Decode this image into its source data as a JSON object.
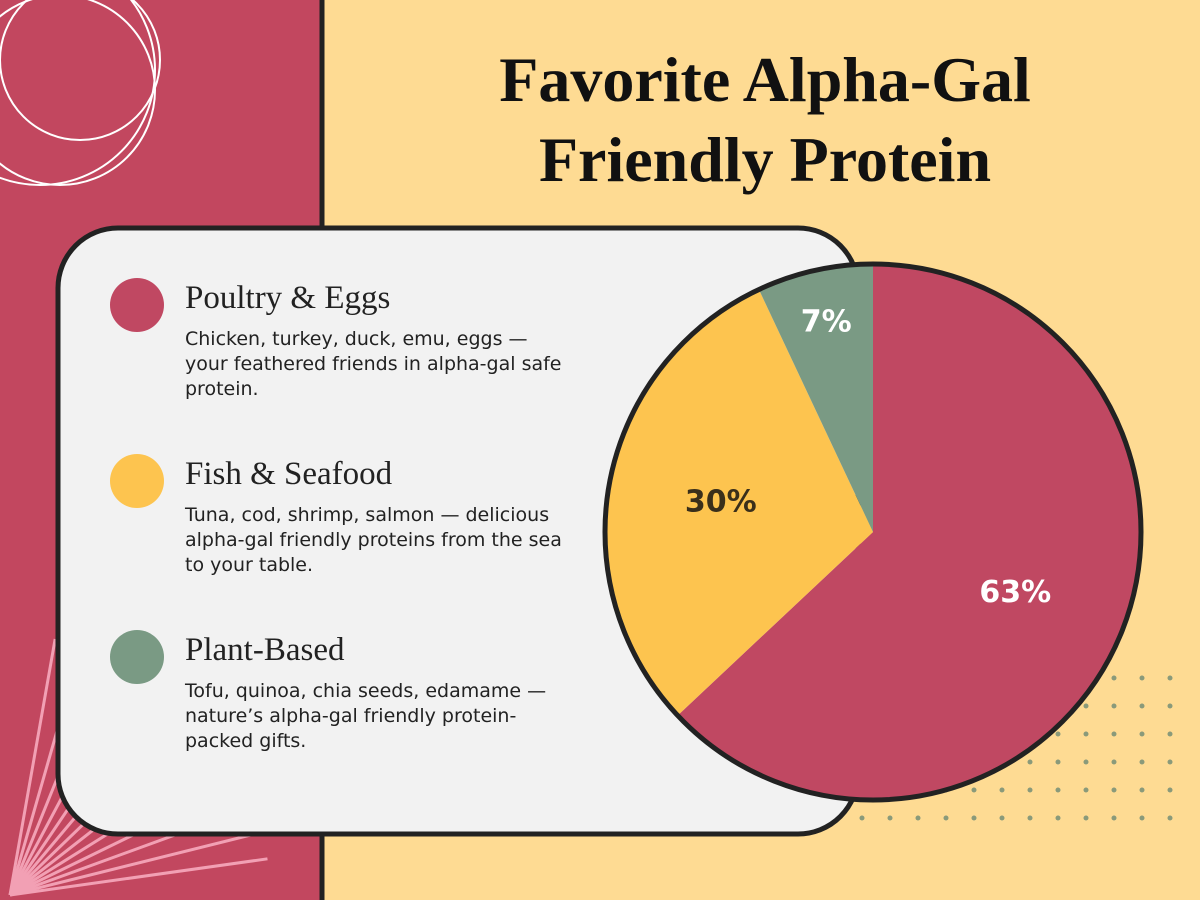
{
  "chart_data": {
    "type": "pie",
    "title": "Favorite Alpha-Gal Friendly Protein",
    "categories": [
      "Poultry & Eggs",
      "Fish & Seafood",
      "Plant-Based"
    ],
    "descriptions": [
      "Chicken, turkey, duck, emu, eggs — your feathered friends in alpha-gal safe protein.",
      "Tuna, cod, shrimp, salmon — delicious alpha-gal friendly proteins from the sea to your table.",
      "Tofu, quinoa, chia seeds, edamame — nature’s alpha-gal friendly protein-packed gifts."
    ],
    "values": [
      63,
      30,
      7
    ],
    "value_labels": [
      "63%",
      "30%",
      "7%"
    ],
    "colors": [
      "#c04862",
      "#fdc44f",
      "#7a9a84"
    ],
    "label_colors": [
      "#ffffff",
      "#3a2f1a",
      "#ffffff"
    ]
  }
}
